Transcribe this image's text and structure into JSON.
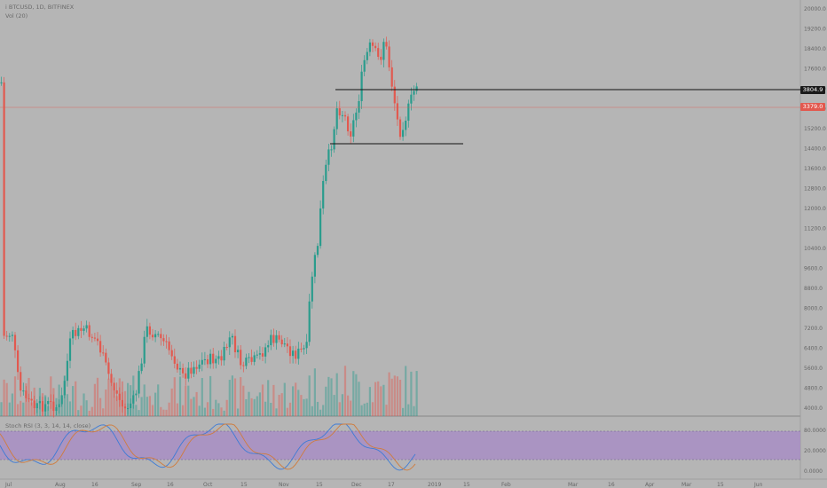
{
  "header": {
    "symbol": "i BTCUSD, 1D, BITFINEX",
    "volume_label": "Vol (20)",
    "osc_label": "Stoch RSI (3, 3, 14, 14, close)"
  },
  "price_axis": [
    "20000.0",
    "19200.0",
    "18400.0",
    "17600.0",
    "16800.0",
    "16000.0",
    "15200.0",
    "14400.0",
    "13600.0",
    "12800.0",
    "12000.0",
    "11200.0",
    "10400.0",
    "9600.0",
    "8800.0",
    "8000.0",
    "7200.0",
    "6400.0",
    "5600.0",
    "4800.0",
    "4000.0"
  ],
  "price_tags": {
    "upper": "3804.9",
    "current": "3379.0"
  },
  "osc_axis": [
    "80.0000",
    "20.0000",
    "0.0000"
  ],
  "time_axis": [
    "Jul",
    "Aug",
    "16",
    "Sep",
    "16",
    "Oct",
    "15",
    "Nov",
    "15",
    "Dec",
    "17",
    "2019",
    "15",
    "Feb",
    "Mar",
    "16",
    "Apr",
    "Mar",
    "15",
    "Jun"
  ],
  "colors": {
    "up": "#2a9c8d",
    "down": "#e2594f",
    "osc_band": "#a88ec4",
    "k_line": "#3d7bd6",
    "d_line": "#d07c3c",
    "bg": "#b5b5b5"
  }
}
